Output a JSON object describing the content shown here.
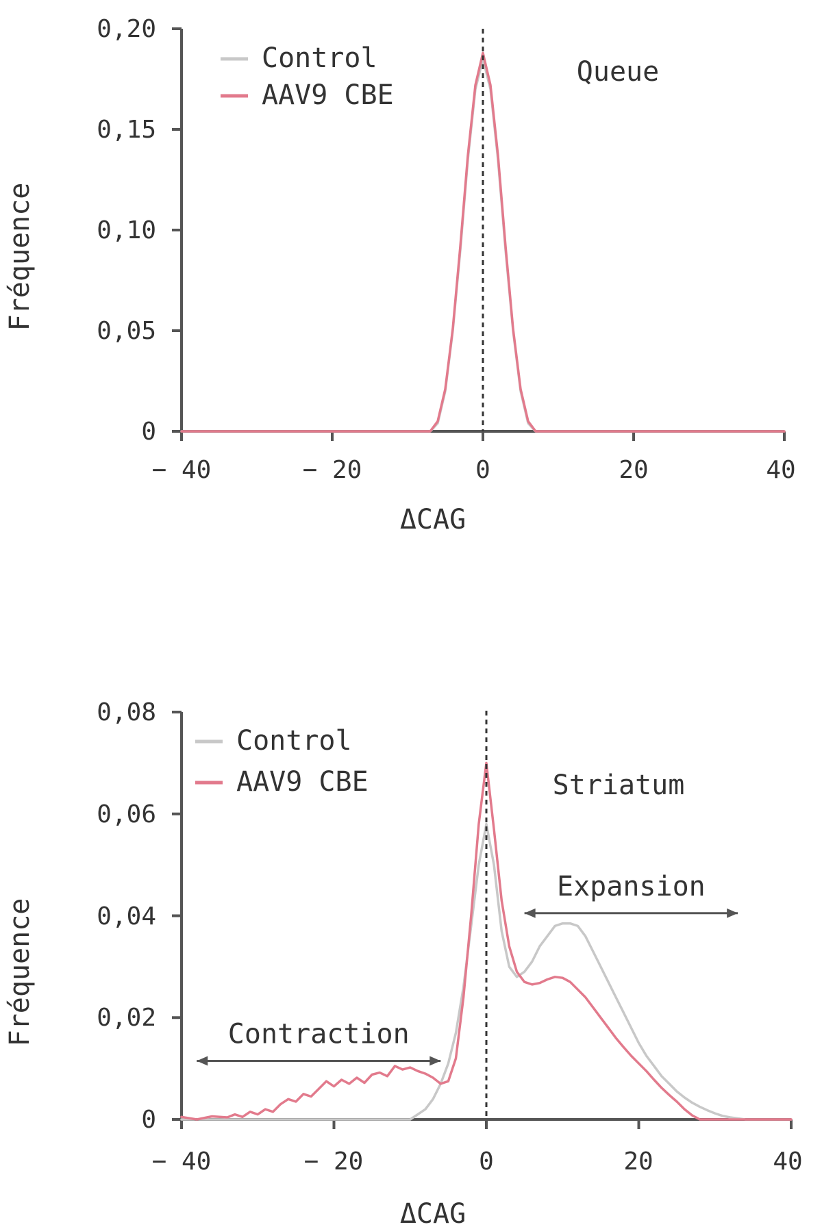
{
  "colors": {
    "control": "#c8c8c8",
    "aav9": "#e27a8c",
    "axis": "#555555",
    "text": "#333333",
    "arrow": "#555555",
    "dashed": "#333333"
  },
  "chart_data": [
    {
      "type": "line",
      "title": "Queue",
      "xlabel": "ΔCAG",
      "ylabel": "Fréquence",
      "xlim": [
        -40,
        40
      ],
      "ylim": [
        0,
        0.2
      ],
      "xticks": [
        -40,
        -20,
        0,
        20,
        40
      ],
      "xtick_labels": [
        "− 40",
        "− 20",
        "0",
        "20",
        "40"
      ],
      "yticks": [
        0,
        0.05,
        0.1,
        0.15,
        0.2
      ],
      "ytick_labels": [
        "0",
        "0,05",
        "0,10",
        "0,15",
        "0,20"
      ],
      "legend": {
        "position": "top-left",
        "entries": [
          "Control",
          "AAV9 CBE"
        ]
      },
      "reference_line_x": 0,
      "series": [
        {
          "name": "Control",
          "x": [
            -40,
            -8,
            -7,
            -6,
            -5,
            -4,
            -3,
            -2,
            -1,
            0,
            1,
            2,
            3,
            4,
            5,
            6,
            7,
            8,
            40
          ],
          "values": [
            0,
            0,
            0,
            0.004,
            0.02,
            0.05,
            0.09,
            0.135,
            0.17,
            0.185,
            0.17,
            0.135,
            0.09,
            0.05,
            0.02,
            0.004,
            0,
            0,
            0
          ]
        },
        {
          "name": "AAV9 CBE",
          "x": [
            -40,
            -8,
            -7,
            -6,
            -5,
            -4,
            -3,
            -2,
            -1,
            0,
            1,
            2,
            3,
            4,
            5,
            6,
            7,
            8,
            40
          ],
          "values": [
            0,
            0,
            0,
            0.005,
            0.021,
            0.051,
            0.092,
            0.137,
            0.172,
            0.188,
            0.172,
            0.137,
            0.092,
            0.051,
            0.021,
            0.005,
            0,
            0,
            0
          ]
        }
      ],
      "annotations": []
    },
    {
      "type": "line",
      "title": "Striatum",
      "xlabel": "ΔCAG",
      "ylabel": "Fréquence",
      "xlim": [
        -40,
        40
      ],
      "ylim": [
        0,
        0.08
      ],
      "xticks": [
        -40,
        -20,
        0,
        20,
        40
      ],
      "xtick_labels": [
        "− 40",
        "− 20",
        "0",
        "20",
        "40"
      ],
      "yticks": [
        0,
        0.02,
        0.04,
        0.06,
        0.08
      ],
      "ytick_labels": [
        "0",
        "0,02",
        "0,04",
        "0,06",
        "0,08"
      ],
      "legend": {
        "position": "top-left",
        "entries": [
          "Control",
          "AAV9 CBE"
        ]
      },
      "reference_line_x": 0,
      "series": [
        {
          "name": "Control",
          "x": [
            -40,
            -10,
            -9,
            -8,
            -7,
            -6,
            -5,
            -4,
            -3,
            -2,
            -1,
            0,
            1,
            2,
            3,
            4,
            5,
            6,
            7,
            8,
            9,
            10,
            11,
            12,
            13,
            14,
            15,
            16,
            17,
            18,
            19,
            20,
            21,
            22,
            23,
            24,
            25,
            26,
            27,
            28,
            29,
            30,
            31,
            32,
            33,
            34,
            40
          ],
          "values": [
            0,
            0,
            0.001,
            0.002,
            0.004,
            0.007,
            0.011,
            0.017,
            0.026,
            0.038,
            0.05,
            0.058,
            0.05,
            0.037,
            0.03,
            0.028,
            0.029,
            0.031,
            0.034,
            0.036,
            0.038,
            0.0385,
            0.0385,
            0.038,
            0.036,
            0.033,
            0.03,
            0.027,
            0.024,
            0.021,
            0.018,
            0.015,
            0.0125,
            0.0105,
            0.0085,
            0.007,
            0.0055,
            0.0043,
            0.0033,
            0.0025,
            0.0018,
            0.0012,
            0.0007,
            0.0004,
            0.0002,
            0,
            0
          ]
        },
        {
          "name": "AAV9 CBE",
          "x": [
            -40,
            -38,
            -36,
            -34,
            -33,
            -32,
            -31,
            -30,
            -29,
            -28,
            -27,
            -26,
            -25,
            -24,
            -23,
            -22,
            -21,
            -20,
            -19,
            -18,
            -17,
            -16,
            -15,
            -14,
            -13,
            -12,
            -11,
            -10,
            -9,
            -8,
            -7,
            -6,
            -5,
            -4,
            -3,
            -2,
            -1,
            0,
            1,
            2,
            3,
            4,
            5,
            6,
            7,
            8,
            9,
            10,
            11,
            12,
            13,
            14,
            15,
            16,
            17,
            18,
            19,
            20,
            21,
            22,
            23,
            24,
            25,
            26,
            27,
            28,
            40
          ],
          "values": [
            0.0005,
            0,
            0.0006,
            0.0004,
            0.001,
            0.0005,
            0.0015,
            0.001,
            0.002,
            0.0015,
            0.003,
            0.004,
            0.0035,
            0.005,
            0.0045,
            0.006,
            0.0075,
            0.0065,
            0.0078,
            0.007,
            0.0082,
            0.0072,
            0.0088,
            0.0092,
            0.0085,
            0.0105,
            0.0098,
            0.0102,
            0.0095,
            0.009,
            0.0082,
            0.007,
            0.0075,
            0.012,
            0.024,
            0.04,
            0.058,
            0.07,
            0.057,
            0.043,
            0.034,
            0.029,
            0.027,
            0.0265,
            0.0268,
            0.0275,
            0.028,
            0.0278,
            0.027,
            0.0255,
            0.024,
            0.022,
            0.02,
            0.018,
            0.016,
            0.0142,
            0.0125,
            0.011,
            0.0095,
            0.0078,
            0.0062,
            0.0048,
            0.0035,
            0.002,
            0.0008,
            0,
            0
          ]
        }
      ],
      "annotations": [
        {
          "label": "Contraction",
          "x_from": -38,
          "x_to": -6,
          "y": 0.0115
        },
        {
          "label": "Expansion",
          "x_from": 5,
          "x_to": 33,
          "y": 0.0405
        }
      ]
    }
  ]
}
